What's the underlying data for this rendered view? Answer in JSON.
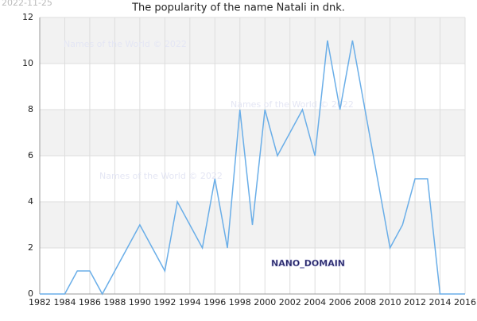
{
  "date": "2022-11-25",
  "watermarks": [
    "Names of the World © 2022",
    "Names of the World © 2022",
    "Names of the World © 2022"
  ],
  "brand": "NANO_DOMAIN",
  "chart_data": {
    "type": "line",
    "title": "The popularity of the name Natali in dnk.",
    "x": [
      1982,
      1983,
      1984,
      1985,
      1986,
      1987,
      1988,
      1989,
      1990,
      1991,
      1992,
      1993,
      1994,
      1995,
      1996,
      1997,
      1998,
      1999,
      2000,
      2001,
      2002,
      2003,
      2004,
      2005,
      2006,
      2007,
      2008,
      2009,
      2010,
      2011,
      2012,
      2013,
      2014,
      2015,
      2016
    ],
    "values": [
      0,
      0,
      0,
      1,
      1,
      0,
      1,
      2,
      3,
      2,
      1,
      4,
      3,
      2,
      5,
      2,
      8,
      3,
      8,
      6,
      7,
      8,
      6,
      11,
      8,
      11,
      8,
      5,
      2,
      3,
      5,
      5,
      0,
      0,
      0
    ],
    "color": "#6aaee8",
    "xlim": [
      1982,
      2016
    ],
    "xticks": [
      1982,
      1984,
      1986,
      1988,
      1990,
      1992,
      1994,
      1996,
      1998,
      2000,
      2002,
      2004,
      2006,
      2008,
      2010,
      2012,
      2014,
      2016
    ],
    "ylim": [
      0,
      12
    ],
    "yticks": [
      0,
      2,
      4,
      6,
      8,
      10,
      12
    ],
    "grid": true,
    "bands": true
  }
}
